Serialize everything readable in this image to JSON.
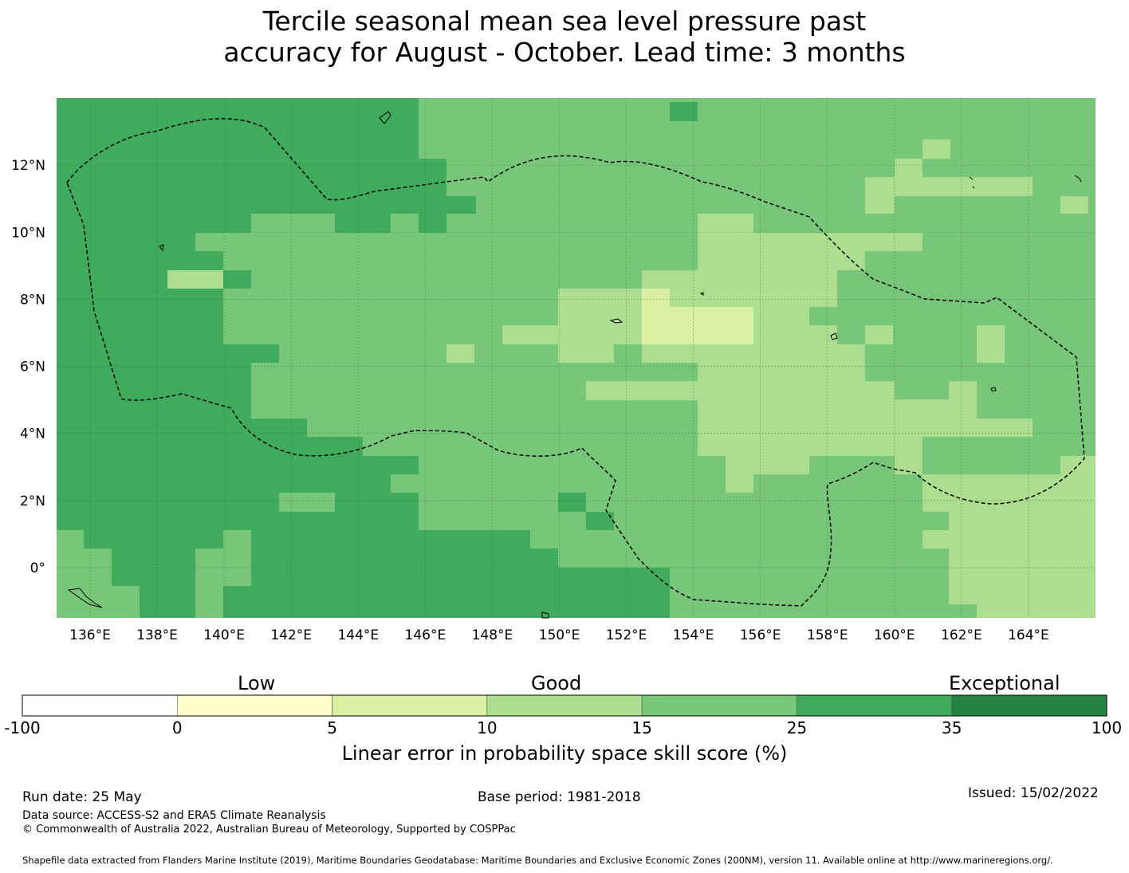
{
  "title": {
    "line1": "Tercile seasonal mean sea level pressure past",
    "line2": "accuracy for August - October. Lead time: 3 months"
  },
  "map": {
    "lon_ticks": [
      "136°E",
      "138°E",
      "140°E",
      "142°E",
      "144°E",
      "146°E",
      "148°E",
      "150°E",
      "152°E",
      "154°E",
      "156°E",
      "158°E",
      "160°E",
      "162°E",
      "164°E"
    ],
    "lat_ticks": [
      "12°N",
      "10°N",
      "8°N",
      "6°N",
      "4°N",
      "2°N",
      "0°"
    ],
    "lon_range": [
      135.0,
      166.0
    ],
    "lat_range": [
      -1.5,
      14.0
    ]
  },
  "colorbar": {
    "categories": [
      "Low",
      "Good",
      "Exceptional"
    ],
    "tick_labels": [
      "-100",
      "0",
      "5",
      "10",
      "15",
      "25",
      "35",
      "100"
    ],
    "colors": [
      "#ffffff",
      "#ffffcc",
      "#d9f0a3",
      "#addd8e",
      "#78c679",
      "#41ab5d",
      "#238443"
    ],
    "label": "Linear error in probability space skill score (%)"
  },
  "footer": {
    "run_date": "Run date: 25 May",
    "base_period": "Base period: 1981-2018",
    "issued": "Issued: 15/02/2022",
    "data_source": "Data source: ACCESS-S2 and ERA5 Climate Reanalysis",
    "copyright": "© Commonwealth of Australia 2022, Australian Bureau of Meteorology, Supported by COSPPac",
    "shapefile": "Shapefile data extracted from Flanders Marine Institute (2019), Maritime Boundaries Geodatabase: Maritime Boundaries and Exclusive Economic Zones (200NM), version 11. Available online at http://www.marineregions.org/."
  }
}
